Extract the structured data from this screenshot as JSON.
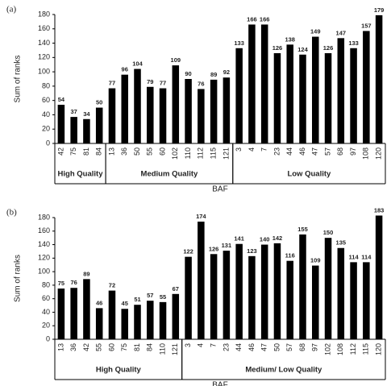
{
  "chart_data": [
    {
      "type": "bar",
      "panel_label": "(a)",
      "y_label": "Sum of ranks",
      "x_label": "BAF",
      "color": "#000000",
      "ylim": [
        0,
        180
      ],
      "yticks": [
        0,
        20,
        40,
        60,
        80,
        100,
        120,
        140,
        160,
        180
      ],
      "groups": [
        {
          "label": "High Quality",
          "categories": [
            "42",
            "75",
            "81",
            "84"
          ],
          "values": [
            54,
            37,
            34,
            50
          ]
        },
        {
          "label": "Medium Quality",
          "categories": [
            "13",
            "36",
            "50",
            "55",
            "60",
            "102",
            "110",
            "112",
            "115",
            "121"
          ],
          "values": [
            77,
            96,
            104,
            79,
            77,
            109,
            90,
            76,
            89,
            92
          ]
        },
        {
          "label": "Low Quality",
          "categories": [
            "3",
            "4",
            "7",
            "23",
            "44",
            "46",
            "47",
            "57",
            "68",
            "97",
            "108",
            "120"
          ],
          "values": [
            133,
            166,
            166,
            126,
            138,
            124,
            149,
            126,
            147,
            133,
            157,
            179
          ]
        }
      ]
    },
    {
      "type": "bar",
      "panel_label": "(b)",
      "y_label": "Sum of ranks",
      "x_label": "BAF",
      "color": "#000000",
      "ylim": [
        0,
        180
      ],
      "yticks": [
        0,
        20,
        40,
        60,
        80,
        100,
        120,
        140,
        160,
        180
      ],
      "groups": [
        {
          "label": "High Quality",
          "categories": [
            "13",
            "36",
            "42",
            "55",
            "60",
            "75",
            "81",
            "84",
            "110",
            "121"
          ],
          "values": [
            75,
            76,
            89,
            46,
            72,
            45,
            51,
            57,
            55,
            67
          ]
        },
        {
          "label": "Medium/ Low Quality",
          "categories": [
            "3",
            "4",
            "7",
            "23",
            "44",
            "46",
            "47",
            "50",
            "57",
            "68",
            "97",
            "102",
            "108",
            "112",
            "115",
            "120"
          ],
          "values": [
            122,
            174,
            126,
            131,
            141,
            123,
            140,
            142,
            116,
            155,
            109,
            150,
            135,
            114,
            114,
            183
          ]
        }
      ]
    }
  ]
}
